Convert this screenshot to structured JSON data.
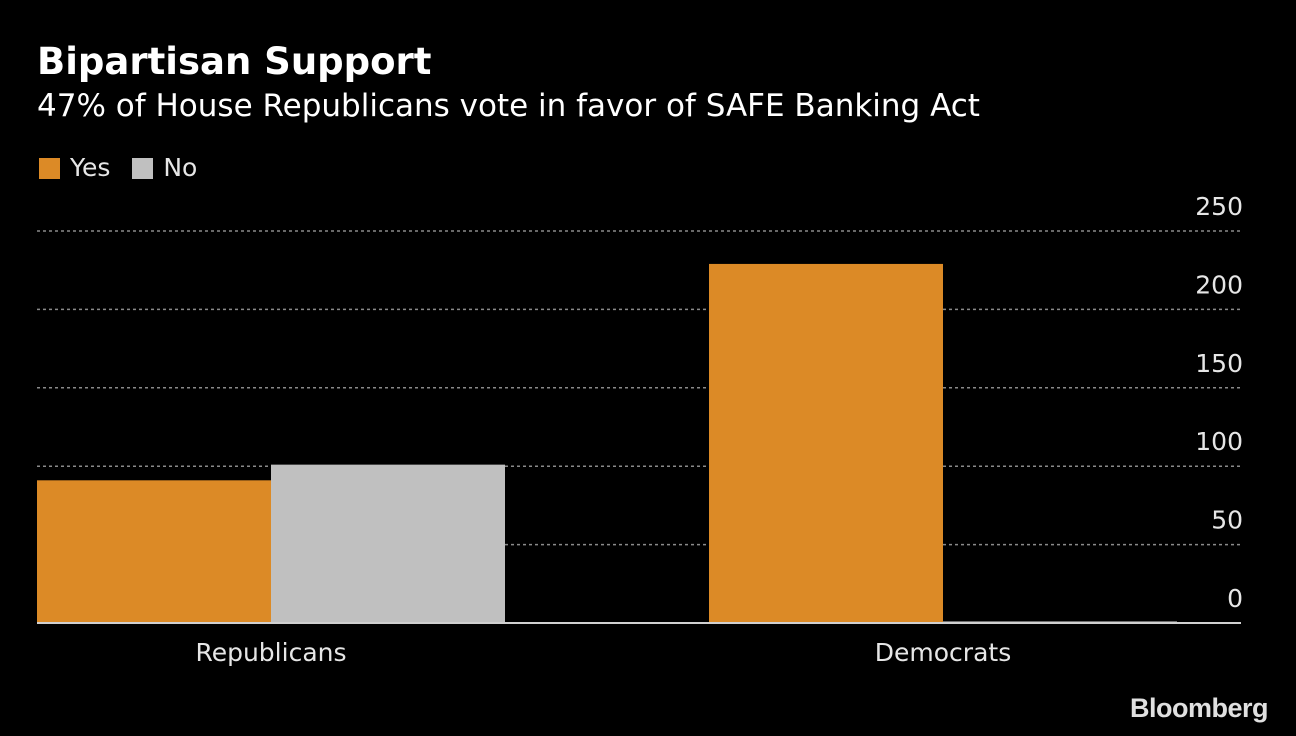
{
  "header": {
    "title": "Bipartisan Support",
    "subtitle": "47% of House Republicans vote in favor of SAFE Banking Act"
  },
  "legend": [
    {
      "label": "Yes",
      "color": "#dc8a26"
    },
    {
      "label": "No",
      "color": "#c0c0c0"
    }
  ],
  "chart_data": {
    "type": "bar",
    "title": "Bipartisan Support",
    "subtitle": "47% of House Republicans vote in favor of SAFE Banking Act",
    "categories": [
      "Republicans",
      "Democrats"
    ],
    "series": [
      {
        "name": "Yes",
        "color": "#dc8a26",
        "values": [
          91,
          229
        ]
      },
      {
        "name": "No",
        "color": "#c0c0c0",
        "values": [
          101,
          1
        ]
      }
    ],
    "ylim": [
      0,
      250
    ],
    "yticks": [
      0,
      50,
      100,
      150,
      200,
      250
    ],
    "ytick_labels": [
      "0",
      "50",
      "100",
      "150",
      "200",
      "250"
    ],
    "xlabel": "",
    "ylabel": "",
    "grid": true,
    "legend_position": "top-left"
  },
  "footer": {
    "source_logo": "Bloomberg"
  }
}
